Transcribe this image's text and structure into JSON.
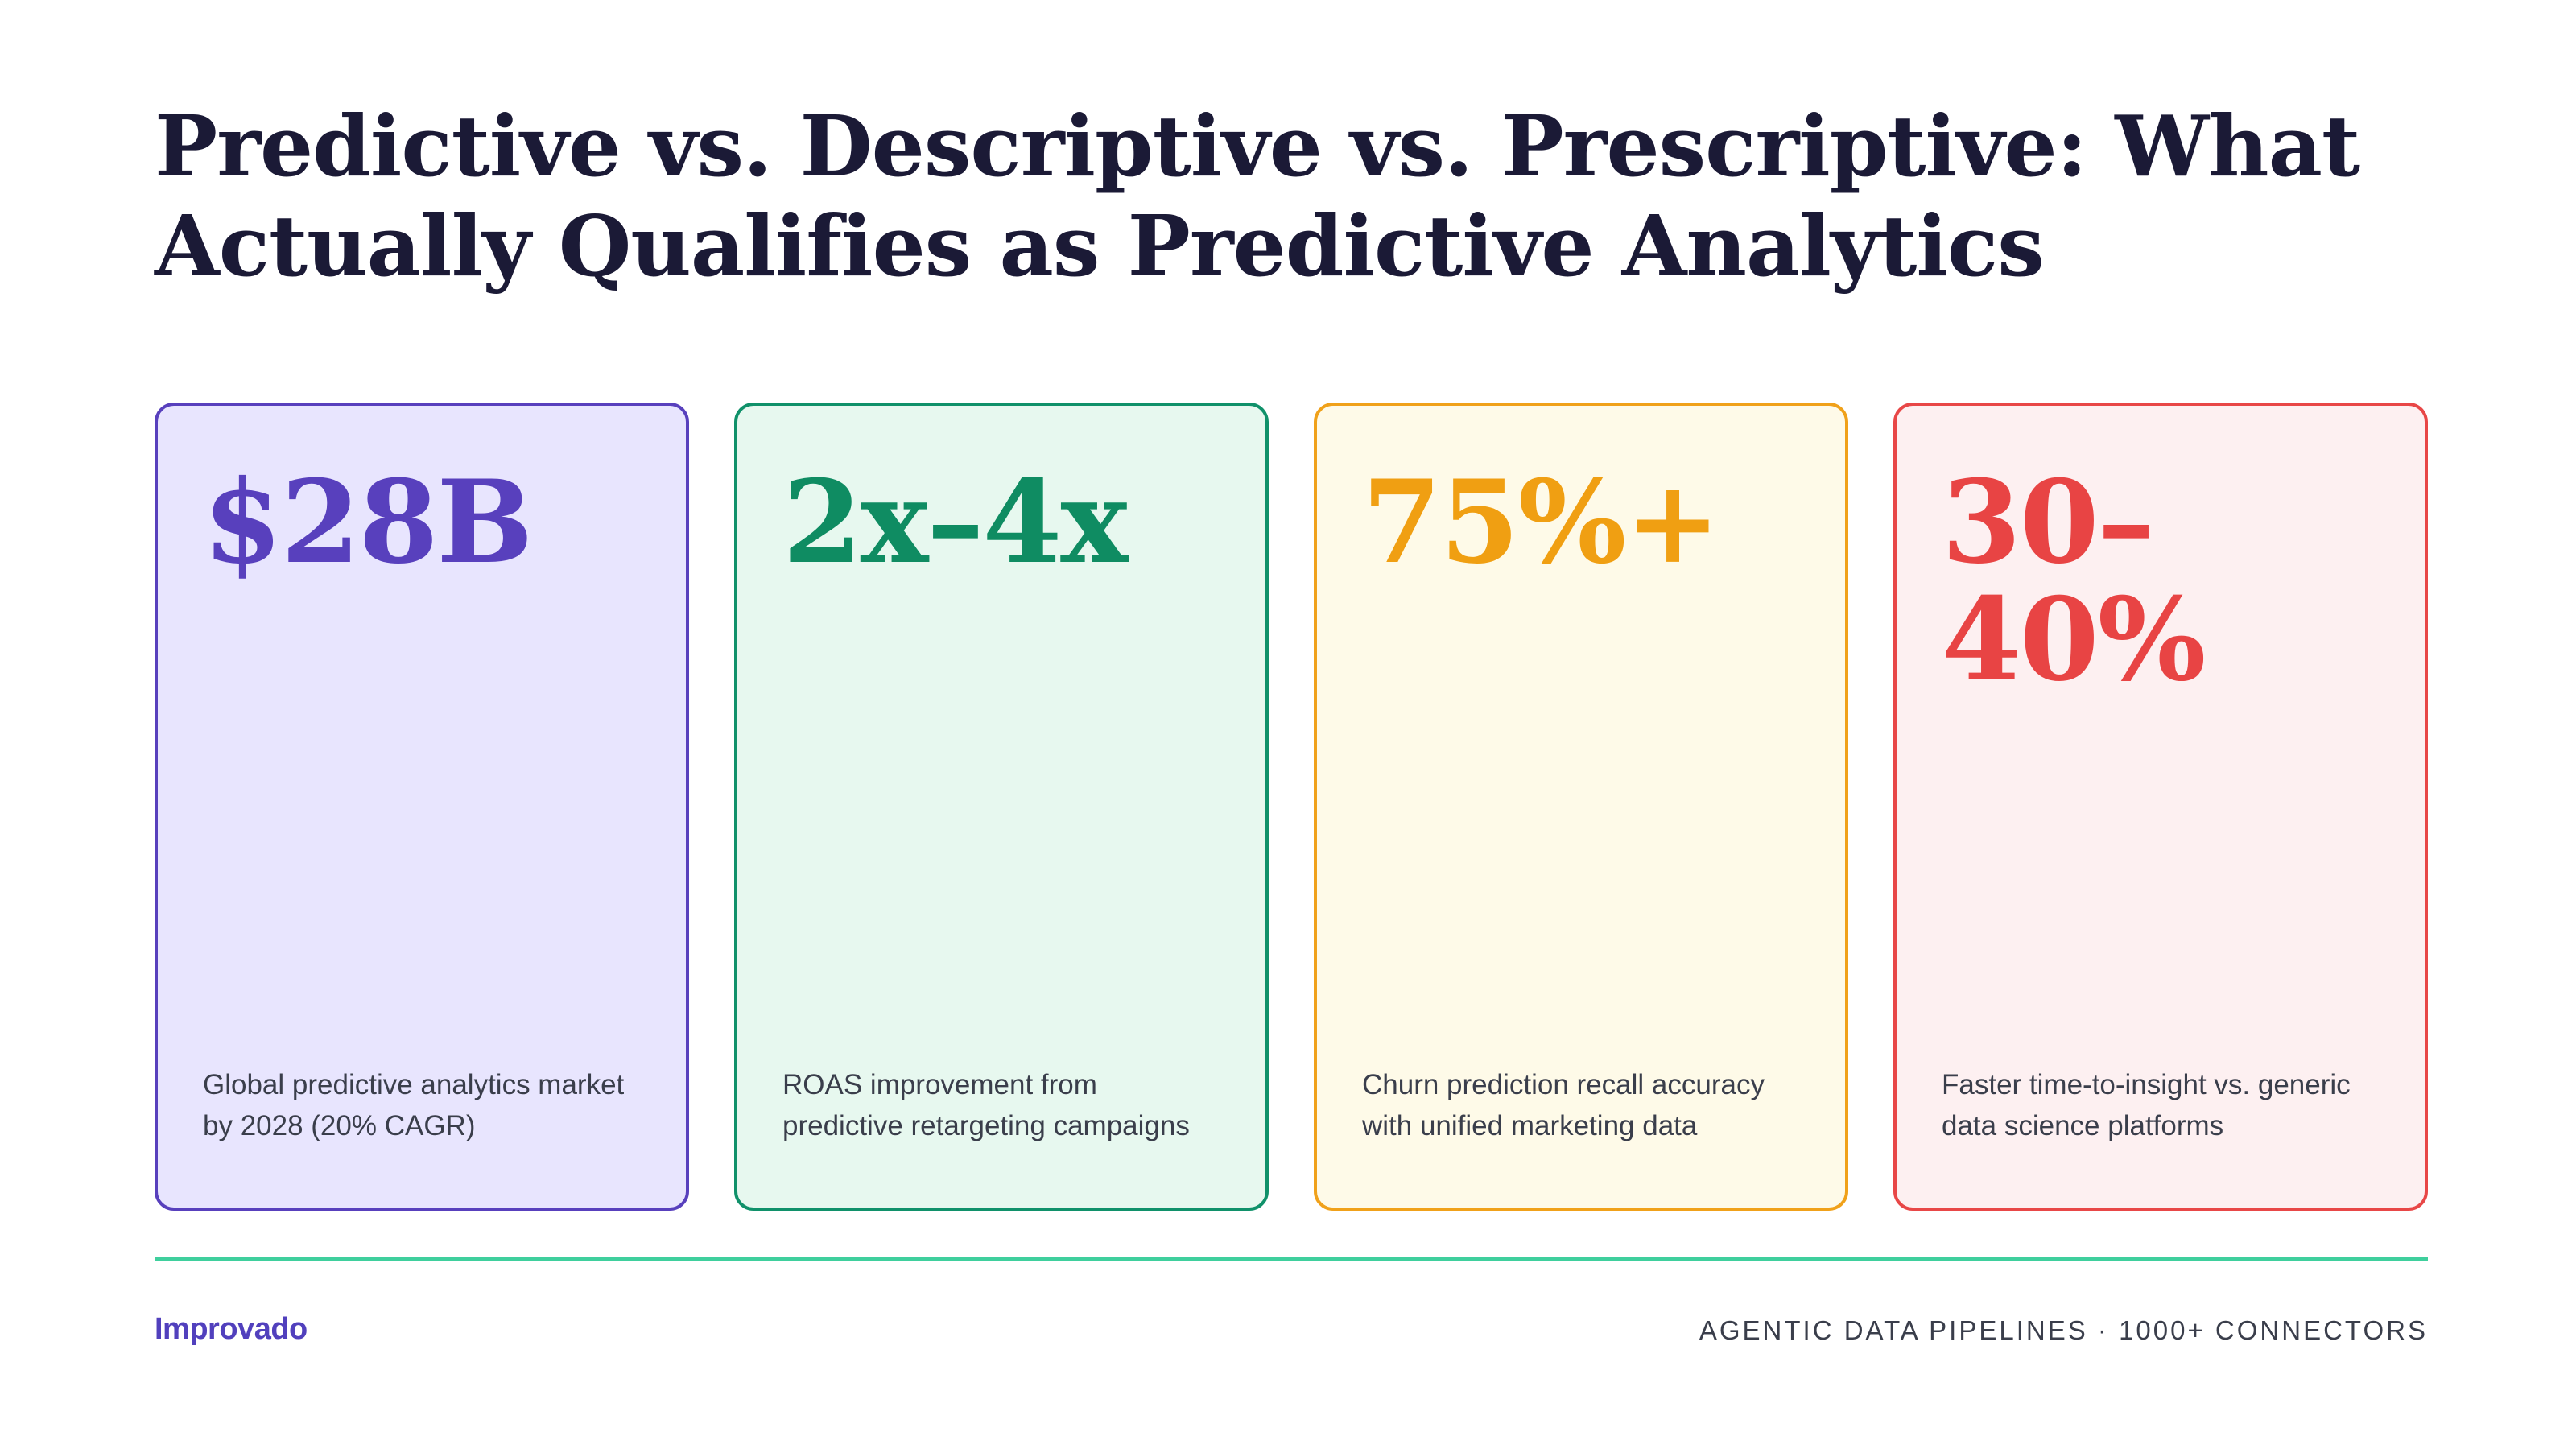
{
  "title": "Predictive vs. Descriptive vs. Prescriptive: What Actually Qualifies as Predictive Analytics",
  "cards": [
    {
      "stat": "$28B",
      "desc": "Global predictive analytics market by 2028 (20% CAGR)",
      "color": "#5840bd",
      "background": "#e8e5fe"
    },
    {
      "stat": "2x–4x",
      "desc": "ROAS improvement from predictive retargeting campaigns",
      "color": "#0f8c62",
      "background": "#e7f8ef"
    },
    {
      "stat": "75%+",
      "desc": "Churn prediction recall accuracy with unified marketing data",
      "color": "#f09f12",
      "background": "#fefae8"
    },
    {
      "stat": "30–\n40%",
      "desc": "Faster time-to-insight vs. generic data science platforms",
      "color": "#e84444",
      "background": "#fdf0f1"
    }
  ],
  "footer": {
    "brand": "Improvado",
    "tagline": "AGENTIC DATA PIPELINES · 1000+ CONNECTORS",
    "divider_color": "#3fcf9d"
  }
}
